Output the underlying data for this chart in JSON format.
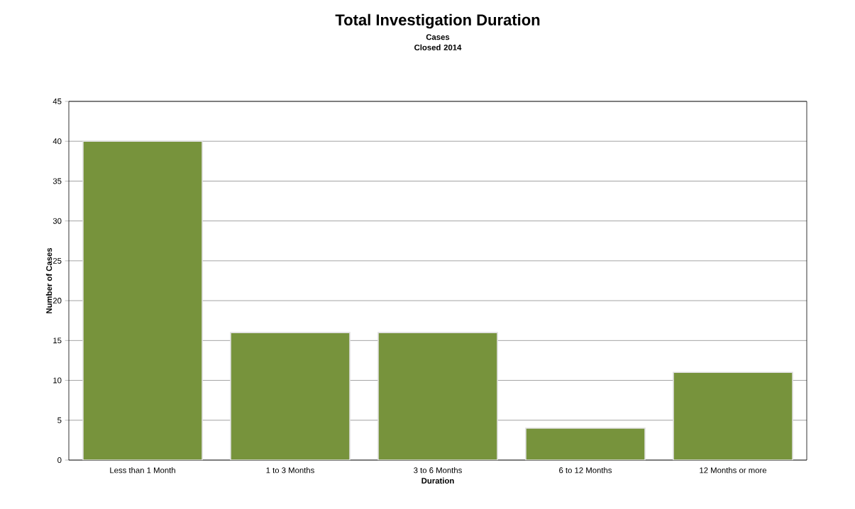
{
  "chart_data": {
    "type": "bar",
    "title": "Total Investigation Duration",
    "subtitle": "Cases Closed 2014",
    "xlabel": "Duration",
    "ylabel": "Number of Cases",
    "categories": [
      "Less than 1 Month",
      "1 to 3 Months",
      "3 to 6 Months",
      "6 to 12 Months",
      "12 Months or more"
    ],
    "values": [
      40,
      16,
      16,
      4,
      11
    ],
    "color": "#77933c",
    "ylim": [
      0,
      45
    ],
    "yticks": [
      0,
      5,
      10,
      15,
      20,
      25,
      30,
      35,
      40,
      45
    ],
    "grid": "y"
  }
}
